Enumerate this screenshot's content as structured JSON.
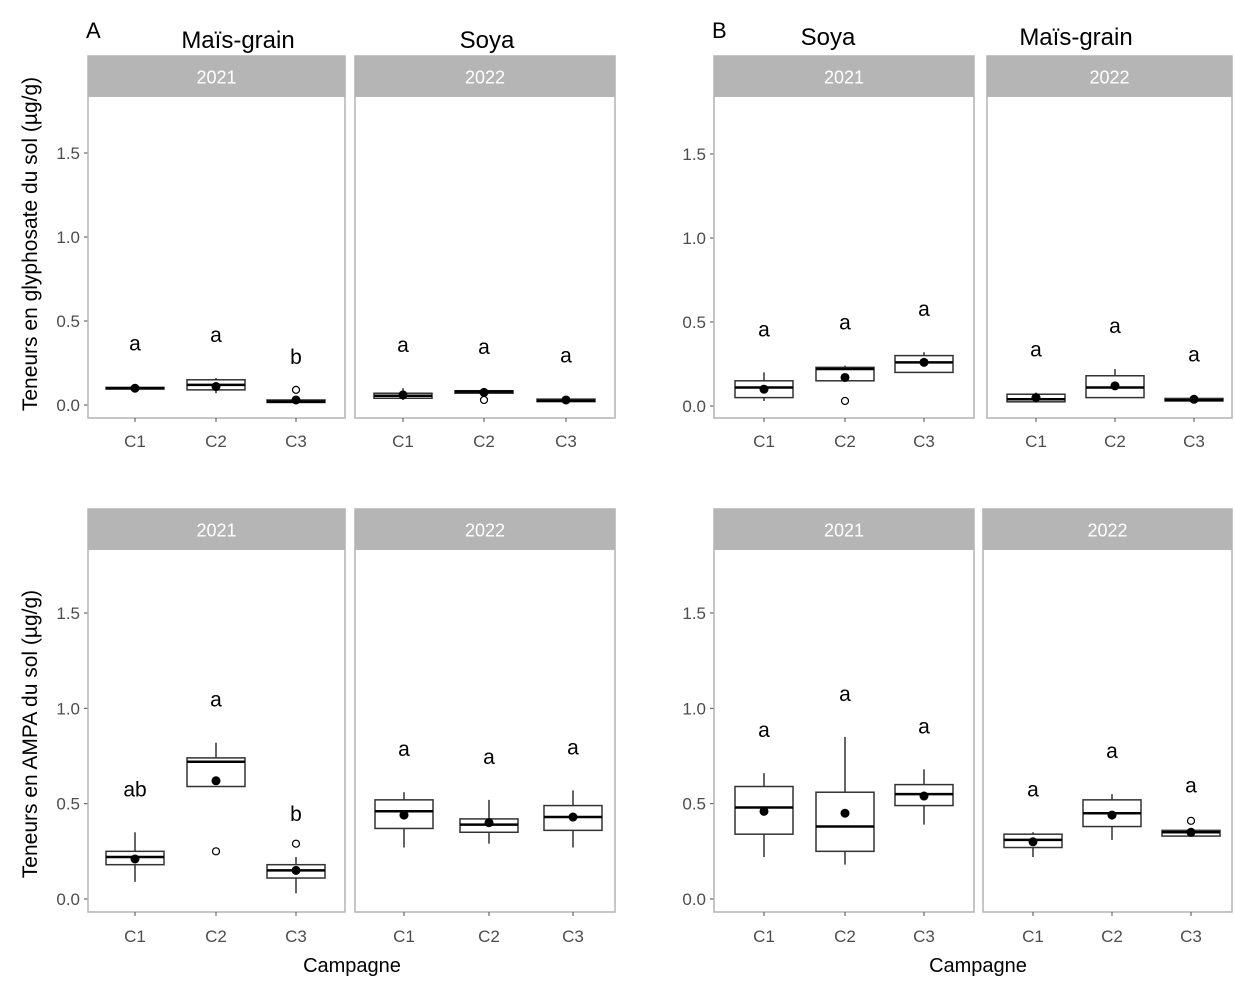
{
  "figure": {
    "panel_letters": [
      "A",
      "B"
    ],
    "crop_titles": [
      "Maïs-grain",
      "Soya",
      "Soya",
      "Maïs-grain"
    ],
    "ylabels": [
      "Teneurs en glyphosate du sol (µg/g)",
      "Teneurs en AMPA du sol (µg/g)"
    ],
    "xlabels": [
      "Campagne",
      "Campagne"
    ]
  },
  "colors": {
    "strip": "#b5b5b5",
    "strip_text": "#ffffff",
    "panel_border": "#b3b3b3",
    "box": "#333333",
    "mean": "#000000",
    "axis_text": "#4d4d4d",
    "text": "#000000"
  },
  "chart_data": [
    {
      "type": "box",
      "group": "A",
      "ylabel": "Teneurs en glyphosate du sol (µg/g)",
      "xlabel": "",
      "ylim": [
        0,
        1.8
      ],
      "yticks": [
        0.0,
        0.5,
        1.0,
        1.5
      ],
      "ytick_labels": [
        "0.0",
        "0.5",
        "1.0",
        "1.5"
      ],
      "facets": [
        {
          "crop": "Maïs-grain",
          "year": "2021",
          "categories": [
            "C1",
            "C2",
            "C3"
          ],
          "boxes": [
            {
              "min": 0.09,
              "q1": 0.095,
              "median": 0.1,
              "q3": 0.105,
              "max": 0.11,
              "mean": 0.1,
              "outliers": [],
              "letter": "a"
            },
            {
              "min": 0.07,
              "q1": 0.09,
              "median": 0.12,
              "q3": 0.15,
              "max": 0.16,
              "mean": 0.11,
              "outliers": [],
              "letter": "a"
            },
            {
              "min": 0.01,
              "q1": 0.015,
              "median": 0.02,
              "q3": 0.03,
              "max": 0.03,
              "mean": 0.03,
              "outliers": [
                0.09
              ],
              "letter": "b"
            }
          ]
        },
        {
          "crop": "Soya",
          "year": "2022",
          "categories": [
            "C1",
            "C2",
            "C3"
          ],
          "boxes": [
            {
              "min": 0.03,
              "q1": 0.04,
              "median": 0.055,
              "q3": 0.07,
              "max": 0.1,
              "mean": 0.06,
              "outliers": [],
              "letter": "a"
            },
            {
              "min": 0.06,
              "q1": 0.07,
              "median": 0.08,
              "q3": 0.085,
              "max": 0.09,
              "mean": 0.075,
              "outliers": [
                0.03
              ],
              "letter": "a"
            },
            {
              "min": 0.015,
              "q1": 0.02,
              "median": 0.025,
              "q3": 0.035,
              "max": 0.04,
              "mean": 0.03,
              "outliers": [],
              "letter": "a"
            }
          ]
        }
      ]
    },
    {
      "type": "box",
      "group": "B",
      "ylabel": "Teneurs en glyphosate du sol (µg/g)",
      "xlabel": "",
      "ylim": [
        0,
        1.8
      ],
      "yticks": [
        0.0,
        0.5,
        1.0,
        1.5
      ],
      "ytick_labels": [
        "0.0",
        "0.5",
        "1.0",
        "1.5"
      ],
      "facets": [
        {
          "crop": "Soya",
          "year": "2021",
          "categories": [
            "C1",
            "C2",
            "C3"
          ],
          "boxes": [
            {
              "min": 0.03,
              "q1": 0.05,
              "median": 0.11,
              "q3": 0.15,
              "max": 0.2,
              "mean": 0.1,
              "outliers": [],
              "letter": "a"
            },
            {
              "min": 0.15,
              "q1": 0.15,
              "median": 0.22,
              "q3": 0.23,
              "max": 0.24,
              "mean": 0.17,
              "outliers": [
                0.03
              ],
              "letter": "a"
            },
            {
              "min": 0.2,
              "q1": 0.2,
              "median": 0.26,
              "q3": 0.3,
              "max": 0.32,
              "mean": 0.26,
              "outliers": [],
              "letter": "a"
            }
          ]
        },
        {
          "crop": "Maïs-grain",
          "year": "2022",
          "categories": [
            "C1",
            "C2",
            "C3"
          ],
          "boxes": [
            {
              "min": 0.02,
              "q1": 0.025,
              "median": 0.04,
              "q3": 0.07,
              "max": 0.08,
              "mean": 0.05,
              "outliers": [],
              "letter": "a"
            },
            {
              "min": 0.05,
              "q1": 0.05,
              "median": 0.11,
              "q3": 0.18,
              "max": 0.22,
              "mean": 0.12,
              "outliers": [],
              "letter": "a"
            },
            {
              "min": 0.03,
              "q1": 0.03,
              "median": 0.035,
              "q3": 0.045,
              "max": 0.05,
              "mean": 0.04,
              "outliers": [],
              "letter": "a"
            }
          ]
        }
      ]
    },
    {
      "type": "box",
      "group": "A",
      "ylabel": "Teneurs en AMPA du sol (µg/g)",
      "xlabel": "Campagne",
      "ylim": [
        0,
        1.8
      ],
      "yticks": [
        0.0,
        0.5,
        1.0,
        1.5
      ],
      "ytick_labels": [
        "0.0",
        "0.5",
        "1.0",
        "1.5"
      ],
      "facets": [
        {
          "crop": "Maïs-grain",
          "year": "2021",
          "categories": [
            "C1",
            "C2",
            "C3"
          ],
          "boxes": [
            {
              "min": 0.09,
              "q1": 0.18,
              "median": 0.22,
              "q3": 0.25,
              "max": 0.35,
              "mean": 0.21,
              "outliers": [],
              "letter": "ab"
            },
            {
              "min": 0.59,
              "q1": 0.59,
              "median": 0.72,
              "q3": 0.74,
              "max": 0.82,
              "mean": 0.62,
              "outliers": [
                0.25
              ],
              "letter": "a"
            },
            {
              "min": 0.03,
              "q1": 0.11,
              "median": 0.15,
              "q3": 0.18,
              "max": 0.22,
              "mean": 0.15,
              "outliers": [
                0.29
              ],
              "letter": "b"
            }
          ]
        },
        {
          "crop": "Soya",
          "year": "2022",
          "categories": [
            "C1",
            "C2",
            "C3"
          ],
          "boxes": [
            {
              "min": 0.27,
              "q1": 0.37,
              "median": 0.46,
              "q3": 0.52,
              "max": 0.56,
              "mean": 0.44,
              "outliers": [],
              "letter": "a"
            },
            {
              "min": 0.29,
              "q1": 0.35,
              "median": 0.39,
              "q3": 0.42,
              "max": 0.52,
              "mean": 0.4,
              "outliers": [],
              "letter": "a"
            },
            {
              "min": 0.27,
              "q1": 0.36,
              "median": 0.43,
              "q3": 0.49,
              "max": 0.57,
              "mean": 0.43,
              "outliers": [],
              "letter": "a"
            }
          ]
        }
      ]
    },
    {
      "type": "box",
      "group": "B",
      "ylabel": "Teneurs en AMPA du sol (µg/g)",
      "xlabel": "Campagne",
      "ylim": [
        0,
        1.8
      ],
      "yticks": [
        0.0,
        0.5,
        1.0,
        1.5
      ],
      "ytick_labels": [
        "0.0",
        "0.5",
        "1.0",
        "1.5"
      ],
      "facets": [
        {
          "crop": "Soya",
          "year": "2021",
          "categories": [
            "C1",
            "C2",
            "C3"
          ],
          "boxes": [
            {
              "min": 0.22,
              "q1": 0.34,
              "median": 0.48,
              "q3": 0.59,
              "max": 0.66,
              "mean": 0.46,
              "outliers": [],
              "letter": "a"
            },
            {
              "min": 0.18,
              "q1": 0.25,
              "median": 0.38,
              "q3": 0.56,
              "max": 0.85,
              "mean": 0.45,
              "outliers": [],
              "letter": "a"
            },
            {
              "min": 0.39,
              "q1": 0.49,
              "median": 0.55,
              "q3": 0.6,
              "max": 0.68,
              "mean": 0.54,
              "outliers": [],
              "letter": "a"
            }
          ]
        },
        {
          "crop": "Maïs-grain",
          "year": "2022",
          "categories": [
            "C1",
            "C2",
            "C3"
          ],
          "boxes": [
            {
              "min": 0.22,
              "q1": 0.27,
              "median": 0.31,
              "q3": 0.34,
              "max": 0.35,
              "mean": 0.3,
              "outliers": [],
              "letter": "a"
            },
            {
              "min": 0.31,
              "q1": 0.38,
              "median": 0.45,
              "q3": 0.52,
              "max": 0.55,
              "mean": 0.44,
              "outliers": [],
              "letter": "a"
            },
            {
              "min": 0.33,
              "q1": 0.33,
              "median": 0.35,
              "q3": 0.36,
              "max": 0.37,
              "mean": 0.35,
              "outliers": [
                0.41
              ],
              "letter": "a"
            }
          ]
        }
      ]
    }
  ]
}
